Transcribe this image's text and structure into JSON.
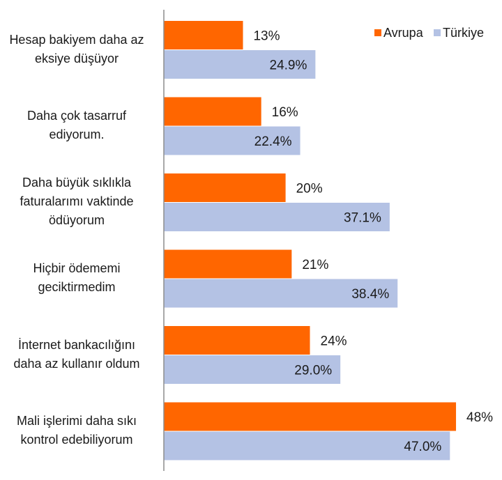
{
  "chart_data": {
    "type": "bar",
    "orientation": "horizontal",
    "categories": [
      [
        "Hesap bakiyem daha az",
        "eksiye düşüyor"
      ],
      [
        "Daha çok tasarruf",
        "ediyorum."
      ],
      [
        "Daha büyük sıklıkla",
        "faturalarımı vaktinde",
        "ödüyorum"
      ],
      [
        "Hiçbir ödememi",
        "geciktirmedim"
      ],
      [
        "İnternet bankacılığını",
        "daha az kullanır oldum"
      ],
      [
        "Mali işlerimi daha sıkı",
        "kontrol edebiliyorum"
      ]
    ],
    "series": [
      {
        "name": "Avrupa",
        "color": "#ff6600",
        "values": [
          13,
          16,
          20,
          21,
          24,
          48
        ],
        "labels": [
          "13%",
          "16%",
          "20%",
          "21%",
          "24%",
          "48%"
        ]
      },
      {
        "name": "Türkiye",
        "color": "#b4c2e4",
        "values": [
          24.9,
          22.4,
          37.1,
          38.4,
          29.0,
          47.0
        ],
        "labels": [
          "24.9%",
          "22.4%",
          "37.1%",
          "38.4%",
          "29.0%",
          "47.0%"
        ]
      }
    ],
    "xlim": [
      0,
      52
    ],
    "legend_position": "top-right",
    "grid": false,
    "title": "",
    "xlabel": "",
    "ylabel": ""
  }
}
